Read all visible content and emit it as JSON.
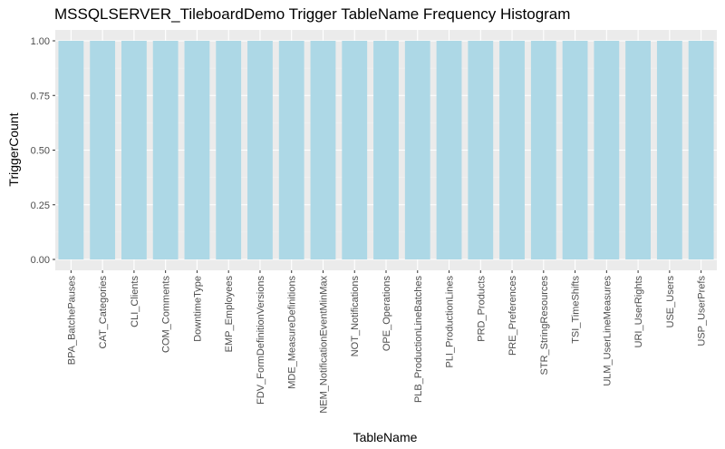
{
  "chart_data": {
    "type": "bar",
    "title": "MSSQLSERVER_TileboardDemo Trigger TableName Frequency Histogram",
    "xlabel": "TableName",
    "ylabel": "TriggerCount",
    "ylim": [
      0,
      1
    ],
    "yticks": [
      "0.00",
      "0.25",
      "0.50",
      "0.75",
      "1.00"
    ],
    "grid": true,
    "bar_color": "#add8e6",
    "panel_color": "#ebebeb",
    "categories": [
      "BPA_BatchePauses",
      "CAT_Categories",
      "CLI_Clients",
      "COM_Comments",
      "DowntimeType",
      "EMP_Employees",
      "FDV_FormDefinitionVersions",
      "MDE_MeasureDefinitions",
      "NEM_NotificationEventMinMax",
      "NOT_Notifications",
      "OPE_Operations",
      "PLB_ProductionLineBatches",
      "PLI_ProductionLines",
      "PRD_Products",
      "PRE_Preferences",
      "STR_StringResources",
      "TSI_TimeShifts",
      "ULM_UserLineMeasures",
      "URI_UserRights",
      "USE_Users",
      "USP_UserPrefs"
    ],
    "values": [
      1,
      1,
      1,
      1,
      1,
      1,
      1,
      1,
      1,
      1,
      1,
      1,
      1,
      1,
      1,
      1,
      1,
      1,
      1,
      1,
      1
    ]
  }
}
